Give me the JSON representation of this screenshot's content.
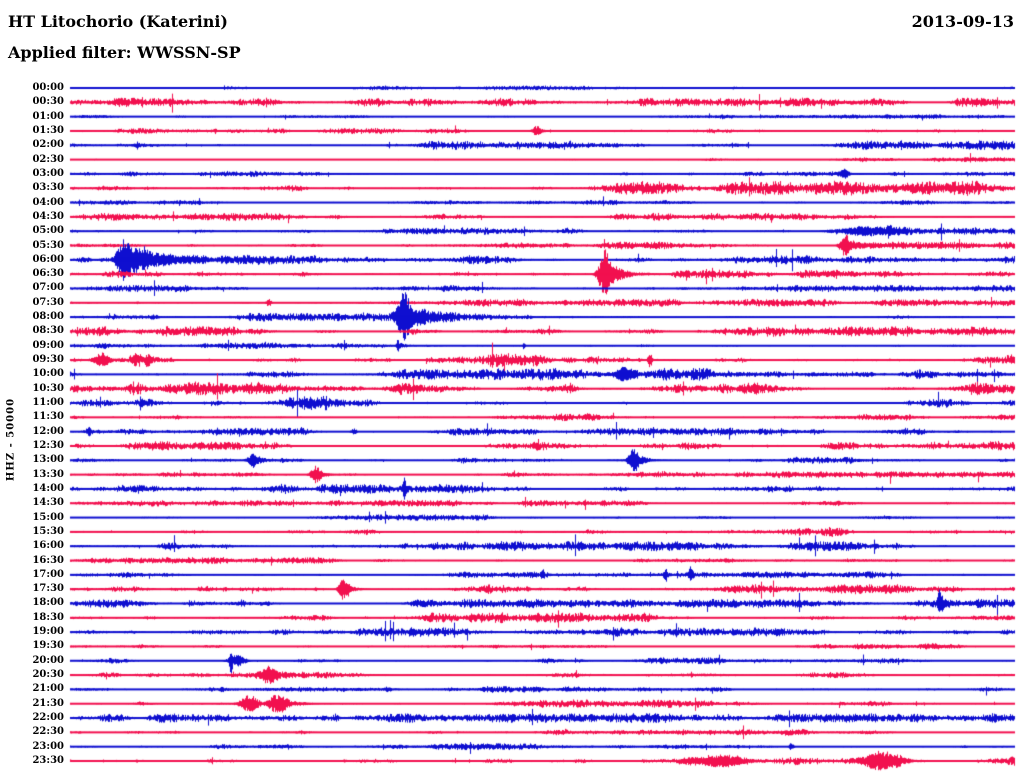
{
  "header": {
    "title": "HT Litochorio (Katerini)",
    "filter_line": "Applied filter: WWSSN-SP",
    "date": "2013-09-13"
  },
  "chart_data": {
    "type": "line",
    "subtype": "helicorder-seismogram",
    "title": "HT Litochorio (Katerini)",
    "station": "HT Litochorio (Katerini)",
    "channel_scale_label": "HHZ - 50000",
    "date": "2013-09-13",
    "applied_filter": "WWSSN-SP",
    "row_duration_minutes": 30,
    "x_range_minutes": [
      0,
      30
    ],
    "legend_position": "none",
    "grid": false,
    "colors": {
      "even_row_trace": "#0f0fd0",
      "odd_row_trace": "#f2104f",
      "text": "#000000",
      "background": "#ffffff"
    },
    "rows": [
      {
        "label": "00:00",
        "color": "blue",
        "noise": 1.4,
        "events": []
      },
      {
        "label": "00:30",
        "color": "red",
        "noise": 2.6,
        "events": []
      },
      {
        "label": "01:00",
        "color": "blue",
        "noise": 1.3,
        "events": []
      },
      {
        "label": "01:30",
        "color": "red",
        "noise": 1.7,
        "events": [
          {
            "m": 4.6,
            "a": 3,
            "w": 1,
            "t": 0
          },
          {
            "m": 14.8,
            "a": 5,
            "w": 4,
            "t": 6
          }
        ]
      },
      {
        "label": "02:00",
        "color": "blue",
        "noise": 2.8,
        "events": []
      },
      {
        "label": "02:30",
        "color": "red",
        "noise": 1.5,
        "events": []
      },
      {
        "label": "03:00",
        "color": "blue",
        "noise": 1.8,
        "events": [
          {
            "m": 24.6,
            "a": 4,
            "w": 3,
            "t": 0
          }
        ]
      },
      {
        "label": "03:30",
        "color": "red",
        "noise": 4.2,
        "events": []
      },
      {
        "label": "04:00",
        "color": "blue",
        "noise": 1.5,
        "events": []
      },
      {
        "label": "04:30",
        "color": "red",
        "noise": 2.2,
        "events": []
      },
      {
        "label": "05:00",
        "color": "blue",
        "noise": 2.2,
        "events": [
          {
            "m": 25.2,
            "a": 4,
            "w": 20,
            "t": 0
          },
          {
            "m": 26.0,
            "a": 6,
            "w": 2,
            "t": 2
          }
        ]
      },
      {
        "label": "05:30",
        "color": "red",
        "noise": 2.2,
        "events": [
          {
            "m": 24.6,
            "a": 12,
            "w": 4,
            "t": 16
          }
        ]
      },
      {
        "label": "06:00",
        "color": "blue",
        "noise": 2.6,
        "events": [
          {
            "m": 1.75,
            "a": 22,
            "w": 6,
            "t": 40
          }
        ]
      },
      {
        "label": "06:30",
        "color": "red",
        "noise": 2.6,
        "events": [
          {
            "m": 17.0,
            "a": 25,
            "w": 5,
            "t": 14
          }
        ]
      },
      {
        "label": "07:00",
        "color": "blue",
        "noise": 2.0,
        "events": []
      },
      {
        "label": "07:30",
        "color": "red",
        "noise": 2.2,
        "events": [
          {
            "m": 6.3,
            "a": 4,
            "w": 2,
            "t": 0
          }
        ]
      },
      {
        "label": "08:00",
        "color": "blue",
        "noise": 2.4,
        "events": [
          {
            "m": 10.6,
            "a": 25,
            "w": 5,
            "t": 16
          }
        ]
      },
      {
        "label": "08:30",
        "color": "red",
        "noise": 3.0,
        "events": []
      },
      {
        "label": "09:00",
        "color": "blue",
        "noise": 1.8,
        "events": [
          {
            "m": 10.4,
            "a": 6,
            "w": 1,
            "t": 2
          },
          {
            "m": 14.4,
            "a": 4,
            "w": 1,
            "t": 0
          }
        ]
      },
      {
        "label": "09:30",
        "color": "red",
        "noise": 4.0,
        "events": [
          {
            "m": 1.0,
            "a": 7,
            "w": 6,
            "t": 8
          },
          {
            "m": 18.4,
            "a": 8,
            "w": 1.5,
            "t": 2
          }
        ]
      },
      {
        "label": "10:00",
        "color": "blue",
        "noise": 3.6,
        "events": [
          {
            "m": 17.6,
            "a": 7,
            "w": 8,
            "t": 8
          }
        ]
      },
      {
        "label": "10:30",
        "color": "red",
        "noise": 4.0,
        "events": []
      },
      {
        "label": "11:00",
        "color": "blue",
        "noise": 4.0,
        "events": []
      },
      {
        "label": "11:30",
        "color": "red",
        "noise": 2.4,
        "events": []
      },
      {
        "label": "12:00",
        "color": "blue",
        "noise": 2.2,
        "events": [
          {
            "m": 0.6,
            "a": 4,
            "w": 2,
            "t": 0
          },
          {
            "m": 9.0,
            "a": 4,
            "w": 2,
            "t": 0
          }
        ]
      },
      {
        "label": "12:30",
        "color": "red",
        "noise": 2.8,
        "events": []
      },
      {
        "label": "13:00",
        "color": "blue",
        "noise": 2.2,
        "events": [
          {
            "m": 5.8,
            "a": 7,
            "w": 4,
            "t": 8
          },
          {
            "m": 17.9,
            "a": 11,
            "w": 4,
            "t": 12
          }
        ]
      },
      {
        "label": "13:30",
        "color": "red",
        "noise": 2.0,
        "events": [
          {
            "m": 7.8,
            "a": 9,
            "w": 4,
            "t": 8
          }
        ]
      },
      {
        "label": "14:00",
        "color": "blue",
        "noise": 2.8,
        "events": [
          {
            "m": 10.6,
            "a": 13,
            "w": 1,
            "t": 2
          }
        ]
      },
      {
        "label": "14:30",
        "color": "red",
        "noise": 1.9,
        "events": []
      },
      {
        "label": "15:00",
        "color": "blue",
        "noise": 1.8,
        "events": []
      },
      {
        "label": "15:30",
        "color": "red",
        "noise": 2.8,
        "events": []
      },
      {
        "label": "16:00",
        "color": "blue",
        "noise": 2.8,
        "events": []
      },
      {
        "label": "16:30",
        "color": "red",
        "noise": 1.9,
        "events": []
      },
      {
        "label": "17:00",
        "color": "blue",
        "noise": 2.0,
        "events": [
          {
            "m": 15.0,
            "a": 5,
            "w": 1.5,
            "t": 2
          },
          {
            "m": 18.9,
            "a": 5,
            "w": 1.5,
            "t": 2
          },
          {
            "m": 19.7,
            "a": 7,
            "w": 1.5,
            "t": 2
          }
        ]
      },
      {
        "label": "17:30",
        "color": "red",
        "noise": 2.9,
        "events": [
          {
            "m": 8.7,
            "a": 12,
            "w": 4,
            "t": 8
          }
        ]
      },
      {
        "label": "18:00",
        "color": "blue",
        "noise": 2.6,
        "events": [
          {
            "m": 27.6,
            "a": 12,
            "w": 1.5,
            "t": 4
          }
        ]
      },
      {
        "label": "18:30",
        "color": "red",
        "noise": 3.1,
        "events": []
      },
      {
        "label": "19:00",
        "color": "blue",
        "noise": 2.7,
        "events": []
      },
      {
        "label": "19:30",
        "color": "red",
        "noise": 1.8,
        "events": []
      },
      {
        "label": "20:00",
        "color": "blue",
        "noise": 1.9,
        "events": [
          {
            "m": 5.1,
            "a": 14,
            "w": 1.5,
            "t": 3
          },
          {
            "m": 5.3,
            "a": 6,
            "w": 6,
            "t": 6
          }
        ]
      },
      {
        "label": "20:30",
        "color": "red",
        "noise": 1.9,
        "events": [
          {
            "m": 6.3,
            "a": 8,
            "w": 6,
            "t": 10
          }
        ]
      },
      {
        "label": "21:00",
        "color": "blue",
        "noise": 2.1,
        "events": []
      },
      {
        "label": "21:30",
        "color": "red",
        "noise": 2.4,
        "events": [
          {
            "m": 5.7,
            "a": 9,
            "w": 7,
            "t": 6
          },
          {
            "m": 6.6,
            "a": 10,
            "w": 8,
            "t": 18
          }
        ]
      },
      {
        "label": "22:00",
        "color": "blue",
        "noise": 2.7,
        "events": []
      },
      {
        "label": "22:30",
        "color": "red",
        "noise": 2.0,
        "events": []
      },
      {
        "label": "23:00",
        "color": "blue",
        "noise": 1.9,
        "events": [
          {
            "m": 22.9,
            "a": 4,
            "w": 2,
            "t": 0
          }
        ]
      },
      {
        "label": "23:30",
        "color": "red",
        "noise": 2.7,
        "events": [
          {
            "m": 20.6,
            "a": 5,
            "w": 20,
            "t": 0
          },
          {
            "m": 25.7,
            "a": 8,
            "w": 14,
            "t": 20
          }
        ]
      }
    ]
  }
}
